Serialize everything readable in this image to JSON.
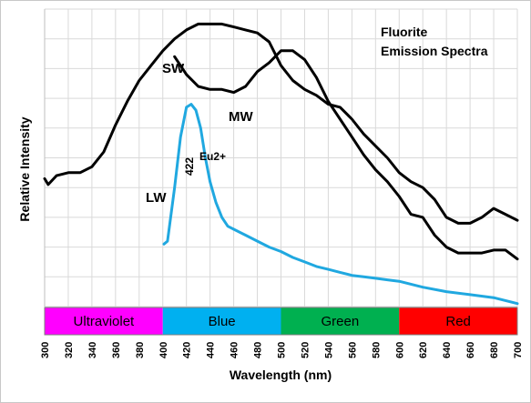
{
  "chart_data": {
    "type": "line",
    "title_lines": [
      "Fluorite",
      "Emission Spectra"
    ],
    "xlabel": "Wavelength (nm)",
    "ylabel": "Relative Intensity",
    "xlim": [
      300,
      700
    ],
    "ylim": [
      0,
      10
    ],
    "x_ticks": [
      "300",
      "320",
      "340",
      "360",
      "380",
      "400",
      "420",
      "440",
      "460",
      "480",
      "500",
      "520",
      "540",
      "560",
      "580",
      "600",
      "620",
      "640",
      "660",
      "680",
      "700"
    ],
    "grid": true,
    "bands": [
      {
        "label": "Ultraviolet",
        "x": [
          300,
          400
        ],
        "color": "#ff00ff"
      },
      {
        "label": "Blue",
        "x": [
          400,
          500
        ],
        "color": "#00b0f0"
      },
      {
        "label": "Green",
        "x": [
          500,
          600
        ],
        "color": "#00b050"
      },
      {
        "label": "Red",
        "x": [
          600,
          700
        ],
        "color": "#ff0000"
      }
    ],
    "series": [
      {
        "name": "SW",
        "color": "#000000",
        "x": [
          300,
          303,
          310,
          320,
          330,
          340,
          350,
          360,
          370,
          380,
          390,
          400,
          410,
          420,
          430,
          440,
          450,
          460,
          470,
          480,
          490,
          500,
          510,
          520,
          530,
          540,
          550,
          560,
          570,
          580,
          590,
          600,
          610,
          620,
          630,
          640,
          650,
          660,
          670,
          680,
          690,
          700
        ],
        "y": [
          4.3,
          4.1,
          4.4,
          4.5,
          4.5,
          4.7,
          5.2,
          6.1,
          6.9,
          7.6,
          8.1,
          8.6,
          9.0,
          9.3,
          9.5,
          9.5,
          9.5,
          9.4,
          9.3,
          9.2,
          8.9,
          8.1,
          7.6,
          7.3,
          7.1,
          6.8,
          6.7,
          6.3,
          5.8,
          5.4,
          5.0,
          4.5,
          4.2,
          4.0,
          3.6,
          3.0,
          2.8,
          2.8,
          3.0,
          3.3,
          3.1,
          2.9
        ]
      },
      {
        "name": "MW",
        "color": "#000000",
        "x": [
          410,
          420,
          430,
          440,
          450,
          460,
          470,
          480,
          490,
          500,
          510,
          520,
          530,
          540,
          550,
          560,
          570,
          580,
          590,
          600,
          610,
          620,
          630,
          640,
          650,
          660,
          670,
          680,
          690,
          700
        ],
        "y": [
          8.4,
          7.8,
          7.4,
          7.3,
          7.3,
          7.2,
          7.4,
          7.9,
          8.2,
          8.6,
          8.6,
          8.3,
          7.7,
          6.9,
          6.3,
          5.7,
          5.1,
          4.6,
          4.2,
          3.7,
          3.1,
          3.0,
          2.4,
          2.0,
          1.8,
          1.8,
          1.8,
          1.9,
          1.9,
          1.6
        ]
      },
      {
        "name": "LW",
        "color": "#20a8e0",
        "x": [
          401,
          404,
          410,
          415,
          420,
          424,
          428,
          432,
          436,
          440,
          445,
          450,
          455,
          460,
          470,
          480,
          490,
          500,
          510,
          520,
          530,
          540,
          550,
          560,
          570,
          580,
          590,
          600,
          620,
          640,
          660,
          680,
          700
        ],
        "y": [
          2.1,
          2.2,
          4.0,
          5.7,
          6.7,
          6.8,
          6.6,
          6.0,
          5.0,
          4.2,
          3.5,
          3.0,
          2.7,
          2.6,
          2.4,
          2.2,
          2.0,
          1.85,
          1.65,
          1.5,
          1.35,
          1.25,
          1.15,
          1.05,
          1.0,
          0.95,
          0.9,
          0.85,
          0.65,
          0.5,
          0.4,
          0.3,
          0.1
        ]
      }
    ],
    "series_labels": [
      "SW",
      "MW",
      "LW"
    ],
    "annotations": [
      "422",
      "Eu2+"
    ]
  }
}
